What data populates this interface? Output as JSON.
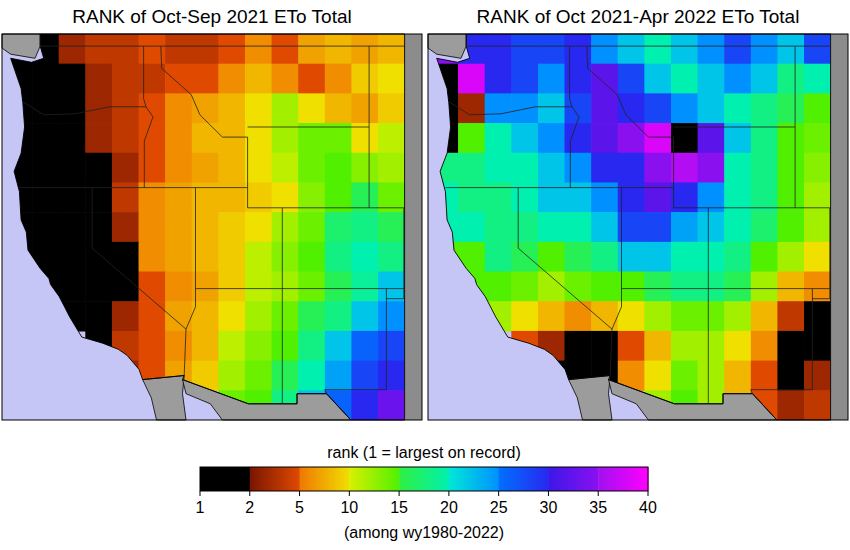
{
  "chart_data": {
    "type": "heatmap",
    "panels": [
      {
        "title": "RANK of Oct-Sep 2021 ETo Total",
        "cells": [
          [
            2,
            2,
            3,
            4,
            4,
            5,
            4,
            4,
            5,
            6,
            5,
            7,
            8,
            7,
            8
          ],
          [
            1,
            2,
            2,
            3,
            4,
            4,
            5,
            5,
            6,
            8,
            6,
            5,
            6,
            9,
            10
          ],
          [
            1,
            1,
            2,
            3,
            4,
            5,
            6,
            7,
            8,
            10,
            12,
            10,
            8,
            7,
            9
          ],
          [
            1,
            1,
            2,
            3,
            4,
            5,
            6,
            8,
            8,
            10,
            12,
            14,
            14,
            10,
            11
          ],
          [
            1,
            1,
            1,
            2,
            3,
            5,
            6,
            7,
            8,
            10,
            11,
            14,
            15,
            13,
            12
          ],
          [
            1,
            1,
            1,
            2,
            4,
            6,
            7,
            8,
            8,
            9,
            10,
            13,
            15,
            16,
            14
          ],
          [
            1,
            1,
            1,
            1,
            3,
            6,
            7,
            8,
            9,
            10,
            12,
            14,
            17,
            18,
            16
          ],
          [
            1,
            1,
            1,
            1,
            2,
            6,
            7,
            8,
            9,
            11,
            13,
            15,
            18,
            20,
            18
          ],
          [
            null,
            1,
            1,
            1,
            2,
            5,
            6,
            7,
            9,
            11,
            12,
            14,
            16,
            19,
            22
          ],
          [
            null,
            null,
            1,
            2,
            3,
            5,
            7,
            8,
            10,
            12,
            14,
            16,
            18,
            22,
            25
          ],
          [
            null,
            null,
            null,
            2,
            4,
            5,
            6,
            8,
            11,
            13,
            15,
            18,
            22,
            26,
            28
          ],
          [
            null,
            null,
            null,
            null,
            3,
            5,
            7,
            9,
            12,
            14,
            16,
            20,
            24,
            28,
            30
          ],
          [
            null,
            null,
            null,
            null,
            null,
            null,
            null,
            null,
            14,
            15,
            18,
            22,
            26,
            30,
            33
          ]
        ]
      },
      {
        "title": "RANK of Oct 2021-Apr 2022 ETo Total",
        "cells": [
          [
            35,
            30,
            30,
            28,
            28,
            30,
            25,
            22,
            20,
            22,
            25,
            28,
            25,
            22,
            28
          ],
          [
            2,
            38,
            30,
            28,
            25,
            30,
            32,
            28,
            22,
            20,
            22,
            25,
            22,
            18,
            20
          ],
          [
            1,
            3,
            25,
            25,
            22,
            28,
            32,
            30,
            28,
            25,
            22,
            20,
            18,
            16,
            15
          ],
          [
            2,
            15,
            20,
            22,
            25,
            30,
            32,
            35,
            38,
            1,
            32,
            22,
            18,
            15,
            14
          ],
          [
            18,
            18,
            20,
            20,
            22,
            25,
            30,
            30,
            35,
            36,
            35,
            20,
            18,
            15,
            13
          ],
          [
            20,
            18,
            18,
            20,
            22,
            22,
            25,
            30,
            32,
            30,
            25,
            20,
            18,
            15,
            12
          ],
          [
            20,
            20,
            18,
            18,
            20,
            20,
            22,
            28,
            28,
            24,
            22,
            20,
            17,
            15,
            12
          ],
          [
            15,
            15,
            18,
            16,
            15,
            16,
            18,
            22,
            22,
            20,
            20,
            18,
            15,
            12,
            10
          ],
          [
            null,
            15,
            15,
            14,
            12,
            14,
            15,
            15,
            16,
            18,
            18,
            16,
            12,
            8,
            6
          ],
          [
            null,
            null,
            12,
            10,
            8,
            6,
            8,
            10,
            12,
            14,
            14,
            12,
            8,
            4,
            1
          ],
          [
            null,
            null,
            null,
            5,
            3,
            1,
            2,
            5,
            8,
            12,
            12,
            10,
            6,
            2,
            1
          ],
          [
            null,
            null,
            null,
            null,
            2,
            1,
            2,
            6,
            10,
            14,
            12,
            8,
            5,
            2,
            3
          ],
          [
            null,
            null,
            null,
            null,
            null,
            null,
            null,
            null,
            12,
            15,
            12,
            8,
            5,
            3,
            4
          ]
        ]
      }
    ],
    "colorbar": {
      "label": "rank (1 = largest on record)",
      "range": [
        1,
        40
      ],
      "ticks": [
        1,
        2,
        5,
        10,
        15,
        20,
        25,
        30,
        35,
        40
      ],
      "sublabel": "(among wy1980-2022)"
    }
  }
}
